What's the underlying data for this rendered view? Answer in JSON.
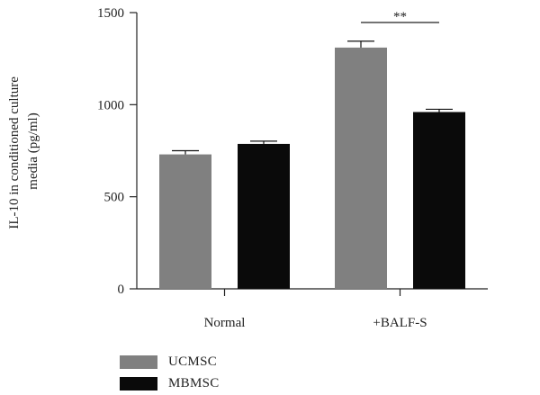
{
  "chart_data": {
    "type": "bar",
    "categories": [
      "Normal",
      "+BALF-S"
    ],
    "series": [
      {
        "name": "UCMSC",
        "values": [
          730,
          1310
        ],
        "errors": [
          20,
          35
        ],
        "color": "#808080"
      },
      {
        "name": "MBMSC",
        "values": [
          787,
          960
        ],
        "errors": [
          15,
          15
        ],
        "color": "#0a0a0a"
      }
    ],
    "ylabel": [
      "IL-10 in conditioned culture",
      "media (pg/ml)"
    ],
    "xlabel": "",
    "title": "",
    "ylim": [
      0,
      1500
    ],
    "yticks": [
      0,
      500,
      1000,
      1500
    ],
    "grid": false,
    "legend_position": "bottom-left",
    "annotations": [
      {
        "text": "**",
        "category": "+BALF-S",
        "between": [
          "UCMSC",
          "MBMSC"
        ]
      }
    ]
  },
  "legend": {
    "items": [
      {
        "label": "UCMSC",
        "color": "#808080"
      },
      {
        "label": "MBMSC",
        "color": "#0a0a0a"
      }
    ]
  }
}
